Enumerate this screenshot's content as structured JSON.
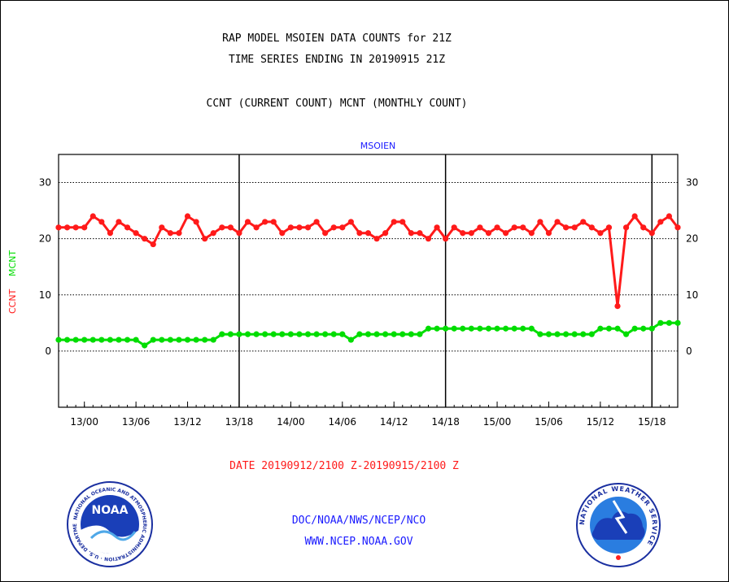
{
  "header": {
    "line1": "RAP MODEL MSOIEN DATA COUNTS for 21Z",
    "line2": "TIME SERIES ENDING IN 20190915 21Z",
    "line3": "CCNT (CURRENT COUNT) MCNT (MONTHLY COUNT)"
  },
  "footer": {
    "date_range": "DATE 20190912/2100 Z-20190915/2100 Z",
    "org": "DOC/NOAA/NWS/NCEP/NCO",
    "url": "WWW.NCEP.NOAA.GOV"
  },
  "logos": {
    "left": {
      "name": "noaa-logo",
      "text": "NOAA",
      "ring_text": "NATIONAL OCEANIC AND ATMOSPHERIC ADMINISTRATION · U.S. DEPARTMENT OF COMMERCE"
    },
    "right": {
      "name": "nws-logo",
      "ring_text": "NATIONAL WEATHER SERVICE"
    }
  },
  "colors": {
    "ccnt": "#ff1a1a",
    "mcnt": "#00dd00",
    "title": "#1a1aff",
    "grid": "#000000"
  },
  "chart_data": {
    "type": "line",
    "title": "MSOIEN",
    "ylabel_parts": [
      "CCNT",
      "MCNT"
    ],
    "ylim": [
      -10,
      35
    ],
    "yticks": [
      0,
      10,
      20,
      30
    ],
    "grid": "horizontal dotted at 0, 10, 20, 30",
    "x_range_hours": [
      0,
      72
    ],
    "x_ticks": [
      {
        "h": 3,
        "label": "13/00"
      },
      {
        "h": 9,
        "label": "13/06"
      },
      {
        "h": 15,
        "label": "13/12"
      },
      {
        "h": 21,
        "label": "13/18"
      },
      {
        "h": 27,
        "label": "14/00"
      },
      {
        "h": 33,
        "label": "14/06"
      },
      {
        "h": 39,
        "label": "14/12"
      },
      {
        "h": 45,
        "label": "14/18"
      },
      {
        "h": 51,
        "label": "15/00"
      },
      {
        "h": 57,
        "label": "15/06"
      },
      {
        "h": 63,
        "label": "15/12"
      },
      {
        "h": 69,
        "label": "15/18"
      }
    ],
    "day_separators_h": [
      21,
      45,
      69
    ],
    "series": [
      {
        "name": "CCNT",
        "color": "#ff1a1a",
        "values": [
          22,
          22,
          22,
          22,
          24,
          23,
          21,
          23,
          22,
          21,
          20,
          19,
          22,
          21,
          21,
          24,
          23,
          20,
          21,
          22,
          22,
          21,
          23,
          22,
          23,
          23,
          21,
          22,
          22,
          22,
          23,
          21,
          22,
          22,
          23,
          21,
          21,
          20,
          21,
          23,
          23,
          21,
          21,
          20,
          22,
          20,
          22,
          21,
          21,
          22,
          21,
          22,
          21,
          22,
          22,
          21,
          23,
          21,
          23,
          22,
          22,
          23,
          22,
          21,
          22,
          8,
          22,
          24,
          22,
          21,
          23,
          24,
          22
        ]
      },
      {
        "name": "MCNT",
        "color": "#00dd00",
        "values": [
          2,
          2,
          2,
          2,
          2,
          2,
          2,
          2,
          2,
          2,
          1,
          2,
          2,
          2,
          2,
          2,
          2,
          2,
          2,
          3,
          3,
          3,
          3,
          3,
          3,
          3,
          3,
          3,
          3,
          3,
          3,
          3,
          3,
          3,
          2,
          3,
          3,
          3,
          3,
          3,
          3,
          3,
          3,
          4,
          4,
          4,
          4,
          4,
          4,
          4,
          4,
          4,
          4,
          4,
          4,
          4,
          3,
          3,
          3,
          3,
          3,
          3,
          3,
          4,
          4,
          4,
          3,
          4,
          4,
          4,
          5,
          5,
          5
        ]
      }
    ]
  }
}
